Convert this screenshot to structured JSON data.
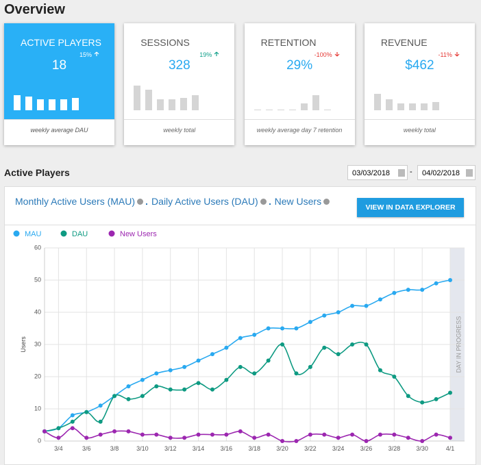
{
  "header": {
    "title": "Overview"
  },
  "cards": [
    {
      "title": "ACTIVE PLAYERS",
      "value": "18",
      "change": "15%",
      "caption": "weekly average DAU",
      "bars": [
        22,
        20,
        16,
        16,
        16,
        18
      ]
    },
    {
      "title": "SESSIONS",
      "value": "328",
      "change": "19%",
      "caption": "weekly total",
      "bars": [
        36,
        30,
        16,
        16,
        18,
        22
      ]
    },
    {
      "title": "RETENTION",
      "value": "29%",
      "change": "-100%",
      "caption": "weekly average day 7 retention",
      "bars": [
        1,
        1,
        1,
        1,
        10,
        22,
        1
      ]
    },
    {
      "title": "REVENUE",
      "value": "$462",
      "change": "-11%",
      "caption": "weekly total",
      "bars": [
        24,
        16,
        10,
        10,
        10,
        12
      ]
    }
  ],
  "section": {
    "title": "Active Players",
    "date_from": "03/03/2018",
    "separator": "-",
    "date_to": "04/02/2018"
  },
  "panel": {
    "links": [
      "Monthly Active Users (MAU)",
      "Daily Active Users (DAU)",
      "New Users"
    ],
    "button": "VIEW IN DATA EXPLORER"
  },
  "chart_data": {
    "type": "line",
    "y_label": "Users",
    "annotation": "DAY IN PROGRESS",
    "categories": [
      null,
      "3/4",
      null,
      "3/6",
      null,
      "3/8",
      null,
      "3/10",
      null,
      "3/12",
      null,
      "3/14",
      null,
      "3/16",
      null,
      "3/18",
      null,
      "3/20",
      null,
      "3/22",
      null,
      "3/24",
      null,
      "3/26",
      null,
      "3/28",
      null,
      "3/30",
      null,
      "4/1"
    ],
    "series": [
      {
        "name": "MAU",
        "color": "#29a9f0",
        "values": [
          3,
          4,
          8,
          9,
          11,
          14,
          17,
          19,
          21,
          22,
          23,
          25,
          27,
          29,
          32,
          33,
          35,
          35,
          35,
          37,
          39,
          40,
          42,
          42,
          44,
          46,
          47,
          47,
          49,
          50
        ]
      },
      {
        "name": "DAU",
        "color": "#0e9a82",
        "values": [
          3,
          4,
          6,
          9,
          6,
          14,
          13,
          14,
          17,
          16,
          16,
          18,
          16,
          19,
          23,
          21,
          25,
          30,
          21,
          23,
          29,
          27,
          30,
          30,
          22,
          20,
          14,
          12,
          13,
          15
        ]
      },
      {
        "name": "New Users",
        "color": "#9c27b0",
        "values": [
          3,
          1,
          4,
          1,
          2,
          3,
          3,
          2,
          2,
          1,
          1,
          2,
          2,
          2,
          3,
          1,
          2,
          0,
          0,
          2,
          2,
          1,
          2,
          0,
          2,
          2,
          1,
          0,
          2,
          1
        ]
      }
    ],
    "ylim": [
      0,
      60
    ],
    "yticks": [
      0,
      10,
      20,
      30,
      40,
      50,
      60
    ],
    "grid": true
  }
}
